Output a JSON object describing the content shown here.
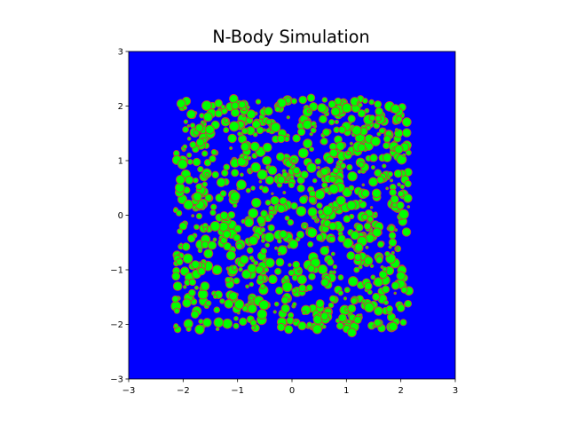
{
  "chart_data": {
    "type": "scatter",
    "title": "N-Body Simulation",
    "xlabel": "",
    "ylabel": "",
    "xlim": [
      -3,
      3
    ],
    "ylim": [
      -3,
      3
    ],
    "x_ticks": [
      "−3",
      "−2",
      "−1",
      "0",
      "1",
      "2",
      "3"
    ],
    "y_ticks": [
      "−3",
      "−2",
      "−1",
      "0",
      "1",
      "2",
      "3"
    ],
    "grid": false,
    "legend": "none",
    "background_color": "#0000ff",
    "marker_face_color": "#00ff00",
    "marker_edge_color": "#c04040",
    "particle_count_estimate": 1000,
    "particle_region": {
      "x": [
        -2.15,
        2.15
      ],
      "y": [
        -2.1,
        2.15
      ]
    },
    "particle_size_range_data_units": [
      0.02,
      0.09
    ],
    "points_sample": [
      {
        "x": -1.85,
        "y": 1.85,
        "r": 0.08
      },
      {
        "x": -1.7,
        "y": 1.6,
        "r": 0.07
      },
      {
        "x": -1.35,
        "y": 2.05,
        "r": 0.07
      },
      {
        "x": -0.75,
        "y": 1.85,
        "r": 0.08
      },
      {
        "x": -0.2,
        "y": 1.4,
        "r": 0.07
      },
      {
        "x": 0.35,
        "y": 2.15,
        "r": 0.07
      },
      {
        "x": 0.8,
        "y": 1.9,
        "r": 0.08
      },
      {
        "x": 1.6,
        "y": 1.9,
        "r": 0.07
      },
      {
        "x": 1.9,
        "y": 1.95,
        "r": 0.08
      },
      {
        "x": 1.5,
        "y": 1.05,
        "r": 0.07
      },
      {
        "x": -1.3,
        "y": 0.6,
        "r": 0.08
      },
      {
        "x": -0.2,
        "y": 0.65,
        "r": 0.07
      },
      {
        "x": 0.6,
        "y": 0.8,
        "r": 0.07
      },
      {
        "x": 1.35,
        "y": 0.4,
        "r": 0.07
      },
      {
        "x": -2.0,
        "y": -0.2,
        "r": 0.07
      },
      {
        "x": -1.2,
        "y": -0.35,
        "r": 0.07
      },
      {
        "x": 0.75,
        "y": -0.2,
        "r": 0.07
      },
      {
        "x": 1.85,
        "y": -0.5,
        "r": 0.07
      },
      {
        "x": -1.6,
        "y": -1.3,
        "r": 0.08
      },
      {
        "x": -0.6,
        "y": -1.0,
        "r": 0.07
      },
      {
        "x": 0.6,
        "y": -0.65,
        "r": 0.08
      },
      {
        "x": 1.4,
        "y": -1.3,
        "r": 0.07
      },
      {
        "x": -2.1,
        "y": -1.3,
        "r": 0.08
      },
      {
        "x": -0.9,
        "y": -1.95,
        "r": 0.07
      },
      {
        "x": -0.2,
        "y": -2.05,
        "r": 0.07
      },
      {
        "x": 0.6,
        "y": -1.85,
        "r": 0.07
      },
      {
        "x": 1.1,
        "y": -2.15,
        "r": 0.08
      },
      {
        "x": 2.0,
        "y": -1.7,
        "r": 0.07
      }
    ]
  }
}
